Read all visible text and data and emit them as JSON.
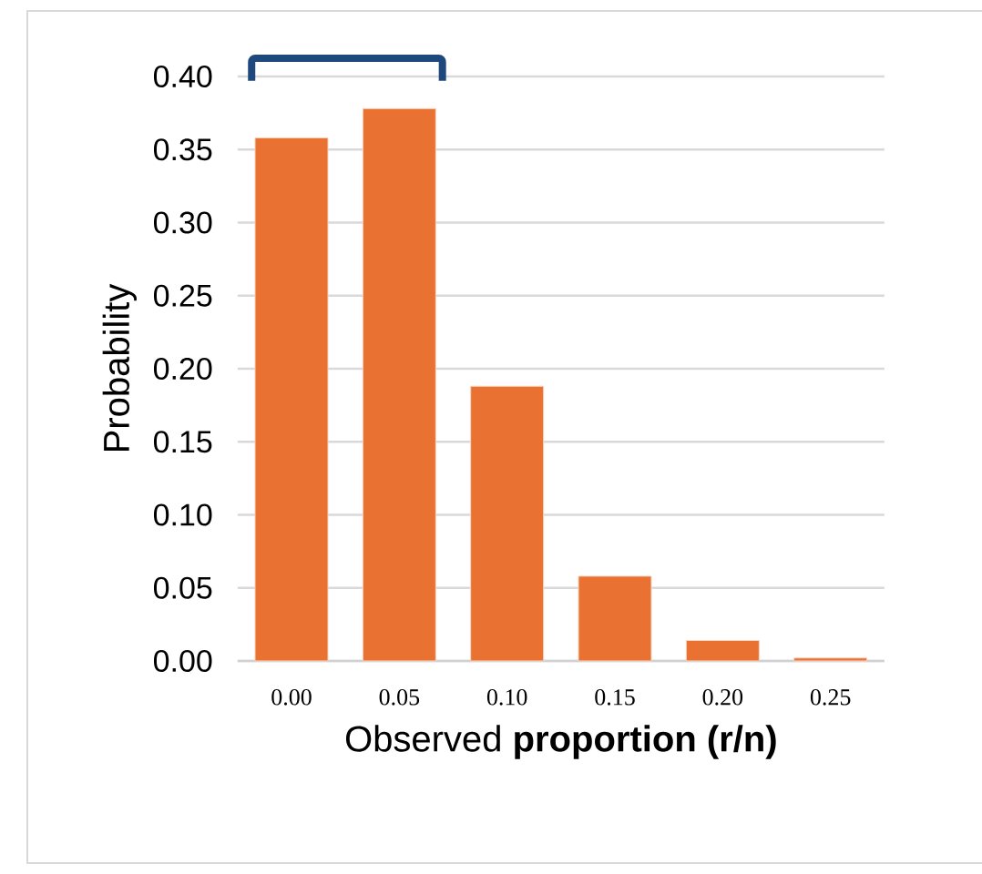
{
  "chart_data": {
    "type": "bar",
    "xlabel": "Observed **proportion (r/n)**",
    "ylabel": "Probability",
    "categories": [
      "0.00",
      "0.05",
      "0.10",
      "0.15",
      "0.20",
      "0.25"
    ],
    "values": [
      0.358,
      0.378,
      0.188,
      0.058,
      0.014,
      0.002
    ],
    "color": "#e97132",
    "ylim": [
      0,
      0.4
    ],
    "yticks": [
      {
        "value": 0,
        "label": "0.00"
      },
      {
        "value": 0.05,
        "label": "0.05"
      },
      {
        "value": 0.1,
        "label": "0.10"
      },
      {
        "value": 0.15,
        "label": "0.15"
      },
      {
        "value": 0.2,
        "label": "0.20"
      },
      {
        "value": 0.25,
        "label": "0.25"
      },
      {
        "value": 0.3,
        "label": "0.30"
      },
      {
        "value": 0.35,
        "label": "0.35"
      },
      {
        "value": 0.4,
        "label": "0.40"
      }
    ],
    "grid": "y"
  }
}
